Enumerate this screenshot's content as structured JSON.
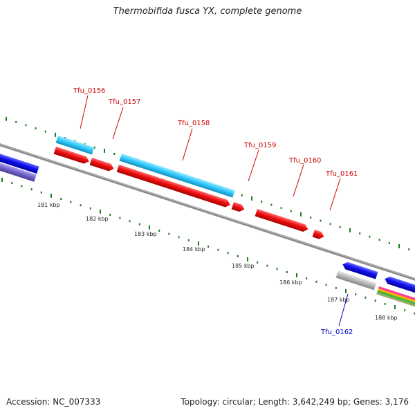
{
  "header": {
    "title": "Thermobifida fusca YX, complete genome"
  },
  "footer": {
    "accession": "Accession: NC_007333",
    "topology": "Topology: circular; Length: 3,642,249 bp; Genes: 3,176"
  },
  "colors": {
    "backbone": "#8a8a8a",
    "tick": "#1f7a1f",
    "forward_gene": "#ee1111",
    "forward_cds": "#33ccff",
    "reverse_gene": "#1111ee",
    "reverse_cds": "#7766cc",
    "pseudo": "#bbbbbb",
    "label_forward": "#cc0000",
    "label_reverse": "#0000cc"
  },
  "scale_labels": [
    "181 kbp",
    "182 kbp",
    "183 kbp",
    "184 kbp",
    "185 kbp",
    "186 kbp",
    "187 kbp",
    "188 kbp"
  ],
  "gene_labels": [
    {
      "text": "Tfu_0156",
      "strand": "forward"
    },
    {
      "text": "Tfu_0157",
      "strand": "forward"
    },
    {
      "text": "Tfu_0158",
      "strand": "forward"
    },
    {
      "text": "Tfu_0159",
      "strand": "forward"
    },
    {
      "text": "Tfu_0160",
      "strand": "forward"
    },
    {
      "text": "Tfu_0161",
      "strand": "forward"
    },
    {
      "text": "Tfu_0162",
      "strand": "reverse"
    }
  ]
}
